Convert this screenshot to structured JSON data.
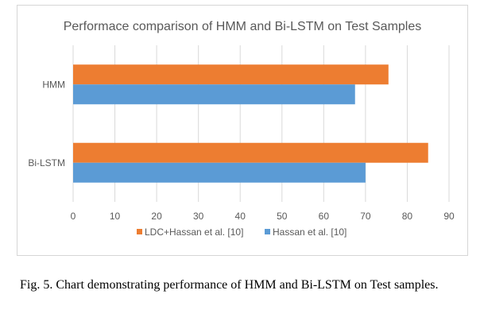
{
  "chart_data": {
    "type": "bar",
    "orientation": "horizontal",
    "title": "Performace comparison of HMM and Bi-LSTM on Test Samples",
    "categories": [
      "HMM",
      "Bi-LSTM"
    ],
    "series": [
      {
        "name": "LDC+Hassan et al. [10]",
        "values": [
          75.5,
          85
        ],
        "color": "#ED7D31"
      },
      {
        "name": "Hassan et al. [10]",
        "values": [
          67.5,
          70
        ],
        "color": "#5B9BD5"
      }
    ],
    "xlim": [
      0,
      90
    ],
    "xticks": [
      "0",
      "10",
      "20",
      "30",
      "40",
      "50",
      "60",
      "70",
      "80",
      "90"
    ],
    "grid": true,
    "legend_position": "bottom"
  },
  "caption": "Fig. 5.  Chart demonstrating performance of HMM and Bi-LSTM on Test samples.",
  "colors": {
    "gridline": "#d9d9d9",
    "text": "#595959"
  }
}
